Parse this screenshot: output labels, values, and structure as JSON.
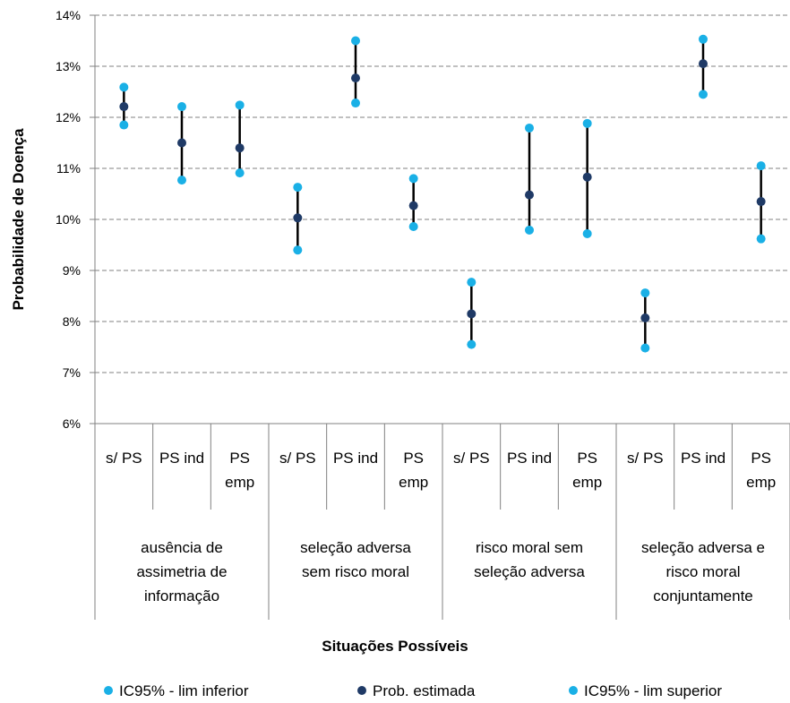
{
  "chart_data": {
    "type": "scatter",
    "xlabel": "Situações Possíveis",
    "ylabel": "Probabilidade de Doença",
    "ylim": [
      6,
      14
    ],
    "y_ticks": [
      "6%",
      "7%",
      "8%",
      "9%",
      "10%",
      "11%",
      "12%",
      "13%",
      "14%"
    ],
    "grid": "horizontal dashed",
    "legend_position": "bottom",
    "colors": {
      "lower": "#1ab0e6",
      "estimate": "#1f3a66",
      "upper": "#1ab0e6",
      "bar": "#000000",
      "grid": "#808080"
    },
    "groups": [
      {
        "label_lines": [
          "ausência de",
          "assimetria de",
          "informação"
        ],
        "categories": [
          {
            "lines": [
              "s/ PS"
            ]
          },
          {
            "lines": [
              "PS ind"
            ]
          },
          {
            "lines": [
              "PS",
              "emp"
            ]
          }
        ]
      },
      {
        "label_lines": [
          "seleção adversa",
          "sem risco moral"
        ],
        "categories": [
          {
            "lines": [
              "s/ PS"
            ]
          },
          {
            "lines": [
              "PS ind"
            ]
          },
          {
            "lines": [
              "PS",
              "emp"
            ]
          }
        ]
      },
      {
        "label_lines": [
          "risco moral sem",
          "seleção adversa"
        ],
        "categories": [
          {
            "lines": [
              "s/ PS"
            ]
          },
          {
            "lines": [
              "PS ind"
            ]
          },
          {
            "lines": [
              "PS",
              "emp"
            ]
          }
        ]
      },
      {
        "label_lines": [
          "seleção adversa e",
          "risco moral",
          "conjuntamente"
        ],
        "categories": [
          {
            "lines": [
              "s/ PS"
            ]
          },
          {
            "lines": [
              "PS ind"
            ]
          },
          {
            "lines": [
              "PS",
              "emp"
            ]
          }
        ]
      }
    ],
    "series": [
      {
        "name": "IC95% - lim inferior",
        "key": "lower",
        "values": [
          11.85,
          10.77,
          10.91,
          9.4,
          12.28,
          9.86,
          7.55,
          9.79,
          9.72,
          7.48,
          12.45,
          9.62
        ]
      },
      {
        "name": "Prob. estimada",
        "key": "estimate",
        "values": [
          12.21,
          11.5,
          11.4,
          10.03,
          12.77,
          10.27,
          8.15,
          10.48,
          10.83,
          8.07,
          13.05,
          10.35
        ]
      },
      {
        "name": "IC95% - lim superior",
        "key": "upper",
        "values": [
          12.59,
          12.21,
          12.24,
          10.63,
          13.5,
          10.8,
          8.77,
          11.79,
          11.88,
          8.56,
          13.53,
          11.05
        ]
      }
    ]
  }
}
